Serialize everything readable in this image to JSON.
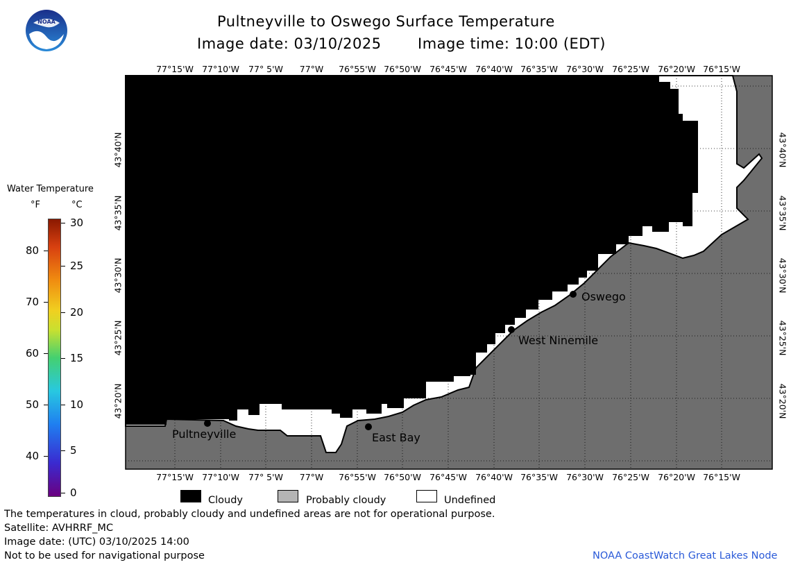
{
  "header": {
    "title": "Pultneyville to Oswego Surface Temperature",
    "date_label": "Image date: 03/10/2025",
    "time_label": "Image time: 10:00 (EDT)",
    "logo_text": "NOAA"
  },
  "colorbar": {
    "title": "Water Temperature",
    "unit_f": "°F",
    "unit_c": "°C",
    "f_ticks": [
      "80",
      "70",
      "60",
      "50",
      "40"
    ],
    "c_ticks": [
      "30",
      "25",
      "20",
      "15",
      "10",
      "5",
      "0"
    ]
  },
  "map": {
    "lon_labels": [
      "77°15'W",
      "77°10'W",
      "77° 5'W",
      "77°W",
      "76°55'W",
      "76°50'W",
      "76°45'W",
      "76°40'W",
      "76°35'W",
      "76°30'W",
      "76°25'W",
      "76°20'W",
      "76°15'W"
    ],
    "lat_labels": [
      "43°40'N",
      "43°35'N",
      "43°30'N",
      "43°25'N",
      "43°20'N"
    ],
    "places": {
      "oswego": "Oswego",
      "west_ninemile": "West Ninemile",
      "east_bay": "East Bay",
      "pultneyville": "Pultneyville"
    },
    "colors": {
      "cloudy": "#000000",
      "probably_cloudy": "#6e6e6e",
      "undefined": "#ffffff"
    }
  },
  "legend": {
    "cloudy": "Cloudy",
    "probably_cloudy": "Probably cloudy",
    "undefined": "Undefined"
  },
  "footer": {
    "disclaimer": "The temperatures in cloud, probably cloudy and undefined areas are not for operational purpose.",
    "satellite": "Satellite: AVHRRF_MC",
    "utc_date": "Image date: (UTC) 03/10/2025  14:00",
    "nav_warning": "Not to be used for navigational purpose",
    "credit": "NOAA CoastWatch Great Lakes Node"
  }
}
